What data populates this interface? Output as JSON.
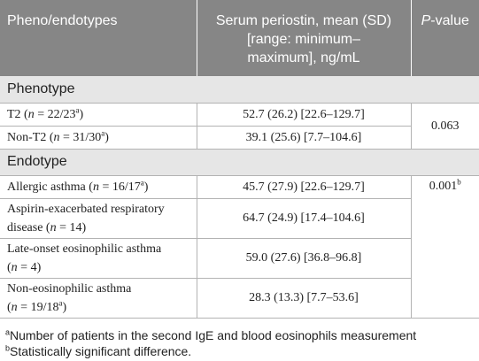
{
  "header": {
    "col1": "Pheno/endotypes",
    "col2_line1": "Serum periostin, mean (SD)",
    "col2_line2": "[range: minimum–",
    "col2_line3": "maximum], ng/mL",
    "col3_italic": "P",
    "col3_rest": "-value"
  },
  "phenotype": {
    "title": "Phenotype",
    "p_value": "0.063",
    "rows": [
      {
        "label": "T2 (",
        "n": "n",
        "eq": " = 22/23",
        "sup": "a",
        "close": ")",
        "value": "52.7 (26.2) [22.6–129.7]"
      },
      {
        "label": "Non-T2 (",
        "n": "n",
        "eq": " = 31/30",
        "sup": "a",
        "close": ")",
        "value": "39.1 (25.6) [7.7–104.6]"
      }
    ]
  },
  "endotype": {
    "title": "Endotype",
    "p_value": "0.001",
    "p_sup": "b",
    "rows": [
      {
        "line1": "Allergic asthma (",
        "n": "n",
        "eq": " = 16/17",
        "sup": "a",
        "close": ")",
        "value": "45.7 (27.9) [22.6–129.7]"
      },
      {
        "line1": "Aspirin-exacerbated respiratory",
        "line2_pre": "disease (",
        "n": "n",
        "eq": " = 14)",
        "value": "64.7 (24.9) [17.4–104.6]"
      },
      {
        "line1": "Late-onset eosinophilic asthma",
        "line2_pre": "(",
        "n": "n",
        "eq": " = 4)",
        "value": "59.0 (27.6) [36.8–96.8]"
      },
      {
        "line1": "Non-eosinophilic asthma",
        "line2_pre": "(",
        "n": "n",
        "eq": " = 19/18",
        "sup": "a",
        "close": ")",
        "value": "28.3 (13.3) [7.7–53.6]"
      }
    ]
  },
  "footnotes": [
    {
      "mark": "a",
      "text": "Number of patients in the second IgE and blood eosinophils measurement"
    },
    {
      "mark": "b",
      "text": "Statistically significant difference."
    }
  ]
}
